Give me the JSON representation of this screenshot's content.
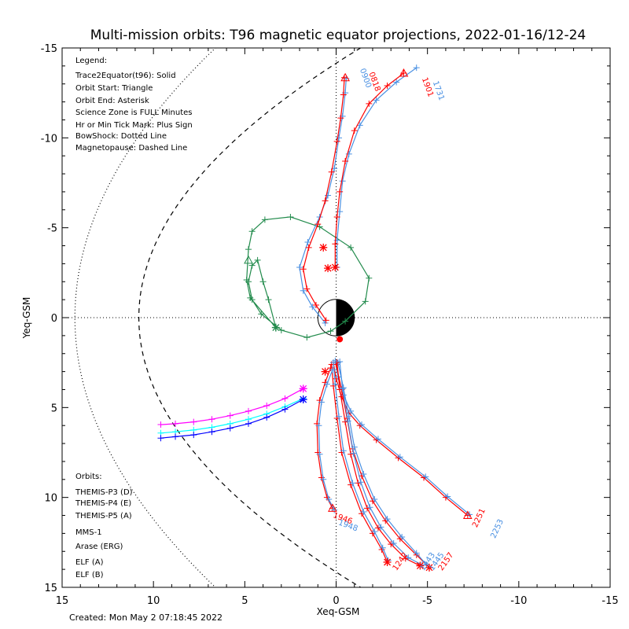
{
  "chart_data": {
    "type": "line",
    "title": "Multi-mission orbits: T96 magnetic equator projections, 2022-01-16/12-24",
    "xlabel": "Xeq-GSM",
    "ylabel": "Yeq-GSM",
    "xlim": [
      15,
      -15
    ],
    "ylim": [
      -15,
      15
    ],
    "x_ticks": [
      "15",
      "10",
      "5",
      "0",
      "-5",
      "-10",
      "-15"
    ],
    "y_ticks": [
      "-15",
      "-10",
      "-5",
      "0",
      "5",
      "10",
      "15"
    ],
    "legend_title": "Legend:",
    "legend_lines": [
      "Trace2Equator(t96): Solid",
      "Orbit Start: Triangle",
      "Orbit End: Asterisk",
      "Science Zone is FULL Minutes",
      "Hr or Min Tick Mark: Plus Sign",
      "BowShock: Dotted Line",
      "Magnetopause: Dashed Line"
    ],
    "orbits_title": "Orbits:",
    "orbit_entries": [
      {
        "label": "THEMIS-P3 (D)",
        "color": "#00ffff"
      },
      {
        "label": "THEMIS-P4 (E)",
        "color": "#0000ff"
      },
      {
        "label": "THEMIS-P5 (A)",
        "color": "#ff00ff"
      },
      {
        "label": "MMS-1",
        "color": "#000000"
      },
      {
        "label": "Arase (ERG)",
        "color": "#228b4c"
      },
      {
        "label": "ELF (A)",
        "color": "#4a90e2"
      },
      {
        "label": "ELF (B)",
        "color": "#ff0000"
      }
    ],
    "created": "Created: Mon May  2 07:18:45 2022",
    "time_labels": [
      {
        "text": "1946",
        "x": 0.2,
        "y": 11.1,
        "color": "#ff0000",
        "rot": 20
      },
      {
        "text": "1948",
        "x": -0.1,
        "y": 11.5,
        "color": "#4a90e2",
        "rot": 20
      },
      {
        "text": "2251",
        "x": -7.7,
        "y": 11.7,
        "color": "#ff0000",
        "rot": -65
      },
      {
        "text": "2253",
        "x": -8.7,
        "y": 12.3,
        "color": "#4a90e2",
        "rot": -65
      },
      {
        "text": "1242",
        "x": -3.3,
        "y": 14.1,
        "color": "#ff0000",
        "rot": -55
      },
      {
        "text": "1443",
        "x": -4.8,
        "y": 14.1,
        "color": "#4a90e2",
        "rot": -55
      },
      {
        "text": "1445",
        "x": -5.3,
        "y": 14.1,
        "color": "#4a90e2",
        "rot": -55
      },
      {
        "text": "2157",
        "x": -5.8,
        "y": 14.1,
        "color": "#ff0000",
        "rot": -55
      },
      {
        "text": "1731",
        "x": -5.3,
        "y": -13.1,
        "color": "#4a90e2",
        "rot": 70
      },
      {
        "text": "1901",
        "x": -4.7,
        "y": -13.3,
        "color": "#ff0000",
        "rot": 70
      },
      {
        "text": "0900",
        "x": -1.3,
        "y": -13.8,
        "color": "#4a90e2",
        "rot": 70
      },
      {
        "text": "0818",
        "x": -1.8,
        "y": -13.6,
        "color": "#ff0000",
        "rot": 70
      }
    ],
    "series": [
      {
        "name": "THEMIS-P3 (D)",
        "color": "#00ffff",
        "x": [
          1.8,
          2.8,
          3.8,
          4.8,
          5.8,
          6.8,
          7.8,
          8.8,
          9.6
        ],
        "y": [
          4.5,
          4.95,
          5.35,
          5.65,
          5.9,
          6.1,
          6.25,
          6.35,
          6.42
        ]
      },
      {
        "name": "THEMIS-P4 (E)",
        "color": "#0000ff",
        "x": [
          1.8,
          2.8,
          3.8,
          4.8,
          5.8,
          6.8,
          7.8,
          8.8,
          9.6
        ],
        "y": [
          4.55,
          5.1,
          5.55,
          5.9,
          6.15,
          6.35,
          6.52,
          6.62,
          6.7
        ]
      },
      {
        "name": "THEMIS-P5 (A)",
        "color": "#ff00ff",
        "x": [
          1.8,
          2.8,
          3.8,
          4.8,
          5.8,
          6.8,
          7.8,
          8.8,
          9.6
        ],
        "y": [
          3.95,
          4.5,
          4.9,
          5.2,
          5.45,
          5.65,
          5.8,
          5.9,
          5.95
        ]
      },
      {
        "name": "Arase (ERG)",
        "color": "#228b4c",
        "x": [
          3.3,
          4.7,
          4.9,
          4.8,
          4.6,
          3.9,
          2.5,
          0.9,
          -0.8,
          -1.8,
          -1.6,
          -0.5,
          0.3,
          1.6,
          3.0,
          4.1,
          4.6,
          4.8,
          4.6,
          4.3,
          4.0,
          3.7,
          3.3
        ],
        "y": [
          0.55,
          -1.1,
          -2.1,
          -3.8,
          -4.8,
          -5.45,
          -5.6,
          -5.05,
          -3.9,
          -2.2,
          -0.9,
          0.2,
          0.75,
          1.1,
          0.7,
          -0.2,
          -1.0,
          -2.0,
          -2.9,
          -3.2,
          -2.0,
          -1.0,
          0.55
        ]
      },
      {
        "name": "ELF (A) n1",
        "color": "#4a90e2",
        "x": [
          -0.55,
          -0.5,
          -0.35,
          -0.15,
          0.1,
          0.45,
          0.9,
          1.55,
          2.0,
          1.8,
          1.3,
          0.6
        ],
        "y": [
          -13.3,
          -12.5,
          -11.2,
          -10.0,
          -8.3,
          -6.8,
          -5.6,
          -4.2,
          -2.8,
          -1.5,
          -0.6,
          0.3
        ]
      },
      {
        "name": "ELF (B) n1",
        "color": "#ff0000",
        "x": [
          -0.45,
          -0.4,
          -0.25,
          -0.05,
          0.25,
          0.6,
          1.0,
          1.5,
          1.8,
          1.6,
          1.1,
          0.55
        ],
        "y": [
          -13.35,
          -12.4,
          -11.1,
          -9.8,
          -8.1,
          -6.5,
          -5.2,
          -3.9,
          -2.7,
          -1.6,
          -0.7,
          0.15
        ]
      },
      {
        "name": "ELF (A) n2",
        "color": "#4a90e2",
        "x": [
          -4.4,
          -3.3,
          -2.2,
          -1.3,
          -0.7,
          -0.35,
          -0.2,
          -0.05,
          -0.05
        ],
        "y": [
          -13.9,
          -13.1,
          -12.1,
          -10.7,
          -9.1,
          -7.6,
          -5.9,
          -4.3,
          -2.8
        ]
      },
      {
        "name": "ELF (B) n2",
        "color": "#ff0000",
        "x": [
          -3.7,
          -2.8,
          -1.8,
          -1.0,
          -0.5,
          -0.2,
          -0.05,
          0.05,
          0.05
        ],
        "y": [
          -13.6,
          -12.9,
          -11.9,
          -10.4,
          -8.7,
          -7.0,
          -5.6,
          -4.1,
          -2.8
        ]
      },
      {
        "name": "ELF (B) s1",
        "color": "#ff0000",
        "x": [
          0.15,
          0.0,
          -0.3,
          -0.7,
          -1.3,
          -2.2,
          -3.4,
          -4.8,
          -6.0,
          -7.2
        ],
        "y": [
          2.5,
          3.4,
          4.4,
          5.3,
          6.0,
          6.8,
          7.8,
          8.9,
          10.0,
          11.0
        ]
      },
      {
        "name": "ELF (A) s1",
        "color": "#4a90e2",
        "x": [
          0.05,
          -0.1,
          -0.4,
          -0.8,
          -1.4,
          -2.3,
          -3.5,
          -4.9,
          -6.1,
          -7.3
        ],
        "y": [
          2.4,
          3.3,
          4.3,
          5.2,
          5.95,
          6.75,
          7.75,
          8.85,
          9.95,
          10.95
        ]
      },
      {
        "name": "ELF (B) s2",
        "color": "#ff0000",
        "x": [
          0.0,
          -0.3,
          -0.6,
          -0.9,
          -1.4,
          -2.0,
          -2.7,
          -3.5,
          -4.4,
          -5.1
        ],
        "y": [
          2.6,
          4.0,
          5.6,
          7.3,
          8.8,
          10.2,
          11.3,
          12.3,
          13.2,
          13.9
        ]
      },
      {
        "name": "ELF (A) s2",
        "color": "#4a90e2",
        "x": [
          -0.1,
          -0.4,
          -0.7,
          -1.0,
          -1.5,
          -2.1,
          -2.8,
          -3.6,
          -4.4,
          -4.95
        ],
        "y": [
          2.5,
          3.9,
          5.5,
          7.2,
          8.7,
          10.1,
          11.2,
          12.2,
          13.1,
          13.75
        ]
      },
      {
        "name": "ELF (B) s3",
        "color": "#ff0000",
        "x": [
          -0.05,
          -0.2,
          -0.5,
          -0.8,
          -1.2,
          -1.7,
          -2.3,
          -3.0,
          -3.8,
          -4.6
        ],
        "y": [
          2.5,
          4.0,
          5.8,
          7.6,
          9.2,
          10.6,
          11.7,
          12.6,
          13.4,
          13.8
        ]
      },
      {
        "name": "ELF (A) s3",
        "color": "#4a90e2",
        "x": [
          -0.2,
          -0.35,
          -0.65,
          -0.95,
          -1.35,
          -1.85,
          -2.45,
          -3.15,
          -3.95,
          -4.7
        ],
        "y": [
          2.45,
          3.95,
          5.75,
          7.55,
          9.15,
          10.55,
          11.65,
          12.55,
          13.35,
          13.75
        ]
      },
      {
        "name": "ELF (B) s4",
        "color": "#ff0000",
        "x": [
          0.25,
          0.15,
          -0.05,
          -0.3,
          -0.8,
          -1.4,
          -2.0,
          -2.5,
          -2.8
        ],
        "y": [
          2.6,
          3.8,
          5.6,
          7.5,
          9.3,
          10.9,
          12.0,
          12.9,
          13.6
        ]
      },
      {
        "name": "ELF (A) s4",
        "color": "#4a90e2",
        "x": [
          0.15,
          0.05,
          -0.15,
          -0.4,
          -0.9,
          -1.5,
          -2.1,
          -2.55,
          -2.85
        ],
        "y": [
          2.5,
          3.7,
          5.5,
          7.4,
          9.2,
          10.8,
          11.9,
          12.8,
          13.5
        ]
      },
      {
        "name": "ELF (B) s5",
        "color": "#ff0000",
        "x": [
          0.3,
          0.6,
          0.9,
          1.05,
          1.0,
          0.8,
          0.5,
          0.2
        ],
        "y": [
          2.8,
          3.6,
          4.6,
          5.9,
          7.5,
          8.9,
          10.0,
          10.6
        ]
      },
      {
        "name": "ELF (A) s5",
        "color": "#4a90e2",
        "x": [
          0.2,
          0.5,
          0.8,
          0.95,
          0.9,
          0.7,
          0.4,
          0.1
        ],
        "y": [
          2.9,
          3.7,
          4.7,
          6.0,
          7.6,
          9.0,
          10.1,
          10.7
        ]
      }
    ],
    "markers": [
      {
        "kind": "triangle",
        "x": 0.2,
        "y": 10.6,
        "color": "#ff0000"
      },
      {
        "kind": "triangle",
        "x": -7.2,
        "y": 11.0,
        "color": "#ff0000"
      },
      {
        "kind": "triangle",
        "x": -3.7,
        "y": -13.6,
        "color": "#ff0000"
      },
      {
        "kind": "triangle",
        "x": -0.5,
        "y": -13.35,
        "color": "#ff0000"
      },
      {
        "kind": "triangle",
        "x": 4.8,
        "y": -3.2,
        "color": "#228b4c"
      },
      {
        "kind": "asterisk",
        "x": 3.3,
        "y": 0.55,
        "color": "#228b4c"
      },
      {
        "kind": "asterisk",
        "x": 1.8,
        "y": 4.55,
        "color": "#0000ff"
      },
      {
        "kind": "asterisk",
        "x": 1.8,
        "y": 3.95,
        "color": "#ff00ff"
      },
      {
        "kind": "asterisk",
        "x": 0.6,
        "y": 3.0,
        "color": "#ff0000"
      },
      {
        "kind": "asterisk",
        "x": -5.1,
        "y": 13.9,
        "color": "#ff0000"
      },
      {
        "kind": "asterisk",
        "x": -4.6,
        "y": 13.8,
        "color": "#ff0000"
      },
      {
        "kind": "asterisk",
        "x": -2.8,
        "y": 13.6,
        "color": "#ff0000"
      },
      {
        "kind": "asterisk",
        "x": 0.45,
        "y": -2.75,
        "color": "#ff0000"
      },
      {
        "kind": "asterisk",
        "x": 0.05,
        "y": -2.8,
        "color": "#ff0000"
      },
      {
        "kind": "asterisk",
        "x": 0.7,
        "y": -3.9,
        "color": "#ff0000"
      }
    ],
    "earth_dot": {
      "x": -0.2,
      "y": 1.2,
      "color": "#ff0000"
    }
  }
}
